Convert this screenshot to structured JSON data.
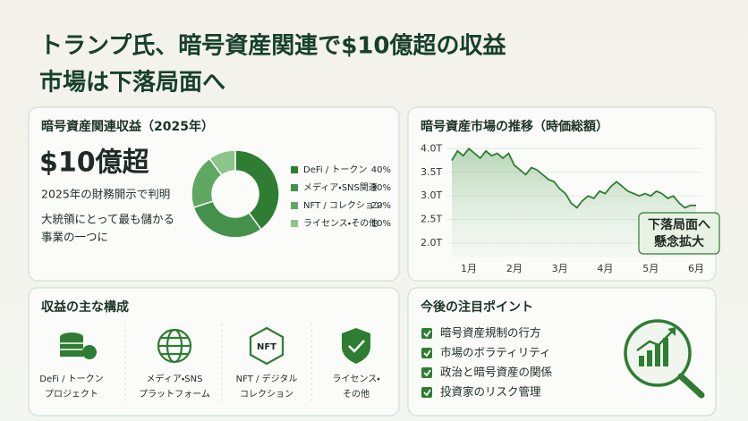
{
  "header": {
    "title_line1": "トランプ氏、暗号資産関連で$10億超の収益",
    "title_line2": "市場は下落局面へ"
  },
  "revenue_card": {
    "title": "暗号資産関連収益（2025年）",
    "headline": "$10億超",
    "note": "2025年の財務開示で判明",
    "comment_lines": [
      "大統領にとって最も儲かる",
      "事業の一つに"
    ]
  },
  "chart_data": [
    {
      "type": "donut",
      "categories": [
        "DeFi / トークン",
        "メディア・SNS関連",
        "NFT / コレクション",
        "ライセンス・その他"
      ],
      "values": [
        40,
        30,
        20,
        10
      ],
      "value_labels": [
        "40%",
        "30%",
        "20%",
        "10%"
      ],
      "colors": [
        "#2e7d32",
        "#43914a",
        "#5fa862",
        "#8cc48b"
      ]
    },
    {
      "type": "line",
      "title": "暗号資産市場の推移（時価総額）",
      "categories": [
        null,
        null,
        null,
        "1月",
        null,
        null,
        null,
        null,
        null,
        null,
        null,
        "2月",
        null,
        null,
        null,
        null,
        null,
        null,
        null,
        "3月",
        null,
        null,
        null,
        null,
        null,
        null,
        null,
        "4月",
        null,
        null,
        null,
        null,
        null,
        null,
        null,
        "5月",
        null,
        null,
        null,
        null,
        null,
        null,
        null,
        "6月"
      ],
      "values": [
        3.75,
        3.95,
        3.85,
        4.0,
        3.9,
        3.8,
        3.95,
        3.85,
        3.9,
        3.8,
        3.9,
        3.65,
        3.55,
        3.45,
        3.6,
        3.55,
        3.45,
        3.35,
        3.3,
        3.15,
        3.05,
        2.85,
        2.75,
        2.9,
        3.0,
        2.95,
        3.1,
        3.05,
        3.2,
        3.3,
        3.2,
        3.1,
        3.05,
        3.0,
        3.05,
        3.0,
        3.1,
        3.05,
        2.95,
        3.0,
        2.85,
        2.75,
        2.8,
        2.8
      ],
      "color": "#2e7d32",
      "ylim": [
        1.7,
        4.1
      ],
      "yticks": [
        {
          "value": 2.0,
          "label": "2.0T"
        },
        {
          "value": 2.5,
          "label": "2.5T"
        },
        {
          "value": 3.0,
          "label": "3.0T"
        },
        {
          "value": 3.5,
          "label": "3.5T"
        },
        {
          "value": 4.0,
          "label": "4.0T"
        }
      ],
      "grid": true,
      "annotation": [
        "下落局面へ",
        "懸念拡大"
      ]
    }
  ],
  "composition_card": {
    "title": "収益の主な構成",
    "items": [
      [
        "DeFi / トークン",
        "プロジェクト"
      ],
      [
        "メディア・SNS",
        "プラットフォーム"
      ],
      [
        "NFT / デジタル",
        "コレクション"
      ],
      [
        "ライセンス・",
        "その他"
      ]
    ]
  },
  "watch_card": {
    "title": "今後の注目ポイント",
    "items": [
      "暗号資産規制の行方",
      "市場のボラティリティ",
      "政治と暗号資産の関係",
      "投資家のリスク管理"
    ]
  }
}
